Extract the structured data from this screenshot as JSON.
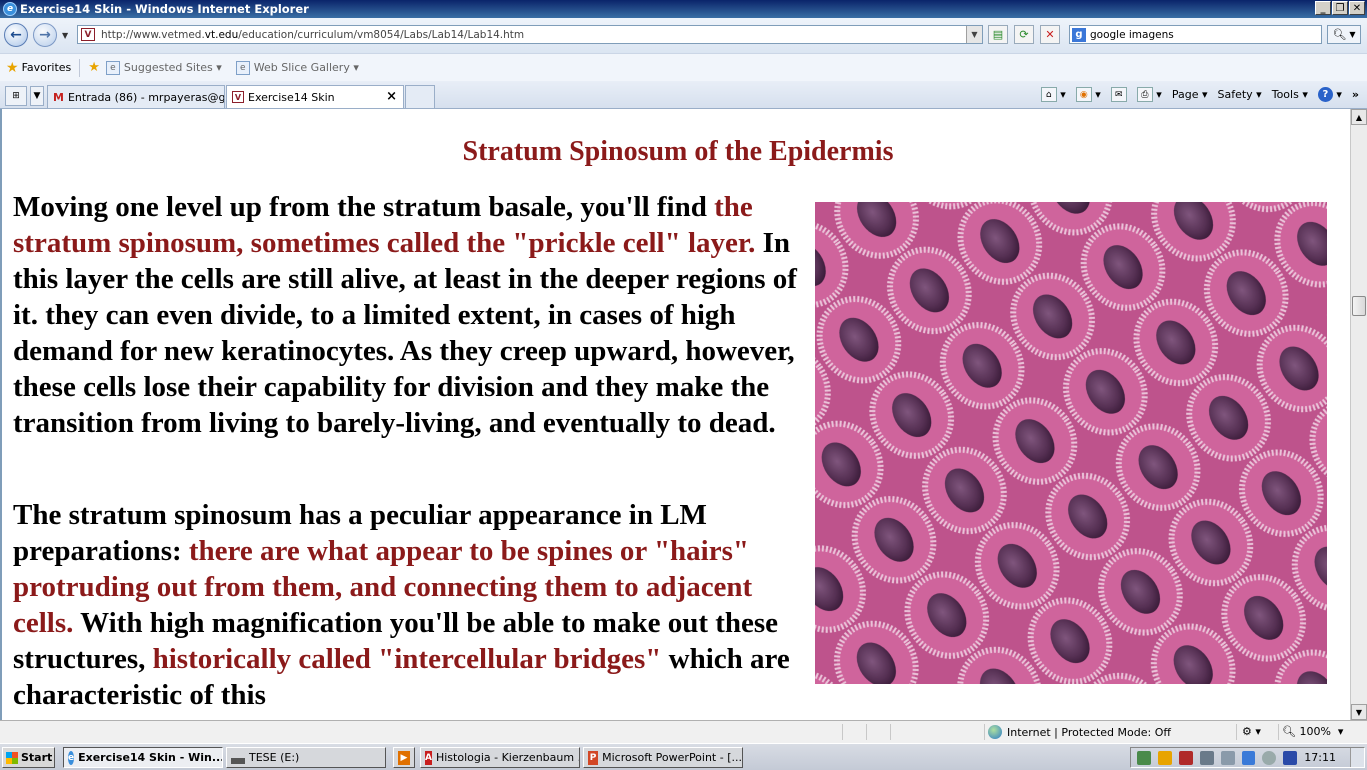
{
  "window": {
    "title": "Exercise14 Skin - Windows Internet Explorer"
  },
  "address_bar": {
    "url_prefix": "http://www.vetmed.",
    "url_host": "vt.edu",
    "url_suffix": "/education/curriculum/vm8054/Labs/Lab14/Lab14.htm"
  },
  "search": {
    "provider_letter": "g",
    "value": "google imagens"
  },
  "favorites_bar": {
    "favorites_label": "Favorites",
    "suggested_sites_label": "Suggested Sites",
    "web_slice_label": "Web Slice Gallery"
  },
  "tabs": [
    {
      "label": "Entrada (86) - mrpayeras@g..."
    },
    {
      "label": "Exercise14 Skin"
    }
  ],
  "command_bar": {
    "page_label": "Page",
    "safety_label": "Safety",
    "tools_label": "Tools"
  },
  "content": {
    "heading": "Stratum Spinosum of the Epidermis",
    "para1": {
      "t1": "Moving one level up from the stratum basale, you'll find ",
      "r1": "the stratum spinosum, sometimes called the \"prickle cell\" layer.",
      "t2": " In this layer the cells are still alive, at least in the deeper regions of it. they can even divide, to a limited extent, in cases of high demand for new keratinocytes. As they creep upward, however, these cells lose their capability for division and they make the transition from living to barely-living, and eventually to dead."
    },
    "para2": {
      "t1": "The stratum spinosum has a peculiar appearance in LM preparations: ",
      "r1": "there are what appear to be spines or \"hairs\" protruding out from them, and connecting them to adjacent cells.",
      "t2": " With high magnification you'll be able to make out these structures, ",
      "r2": "historically called \"intercellular bridges\"",
      "t3": " which are characteristic of this"
    }
  },
  "status_bar": {
    "zone": "Internet | Protected Mode: Off",
    "zoom": "100%"
  },
  "taskbar": {
    "start_label": "Start",
    "tasks": [
      {
        "label": "Exercise14 Skin - Win..."
      },
      {
        "label": "TESE (E:)"
      },
      {
        "label": "Histologia - Kierzenbaum ..."
      },
      {
        "label": "Microsoft PowerPoint - [..."
      }
    ],
    "clock": "17:11"
  }
}
